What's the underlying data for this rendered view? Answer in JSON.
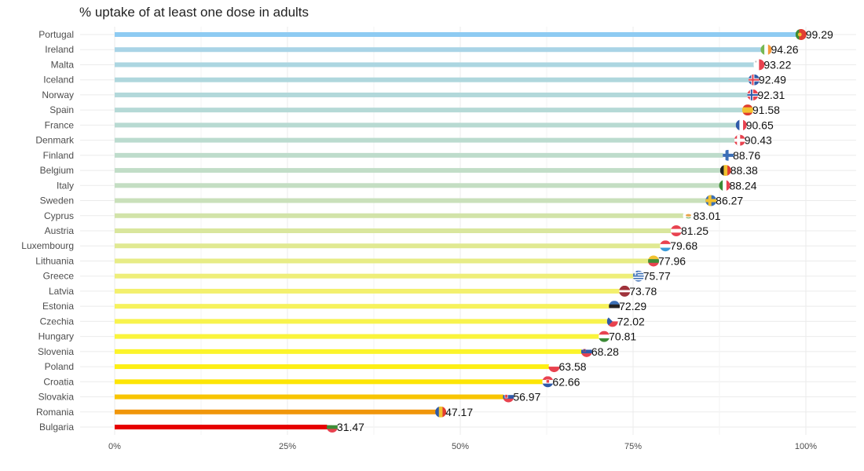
{
  "chart_data": {
    "type": "bar",
    "orientation": "horizontal",
    "title": "% uptake of at least one dose in adults",
    "xlabel": "",
    "ylabel": "",
    "xlim": [
      0,
      107
    ],
    "x_ticks": [
      0,
      25,
      50,
      75,
      100
    ],
    "x_tick_labels": [
      "0%",
      "25%",
      "50%",
      "75%",
      "100%"
    ],
    "grid": true,
    "legend": "none",
    "categories": [
      "Portugal",
      "Ireland",
      "Malta",
      "Iceland",
      "Norway",
      "Spain",
      "France",
      "Denmark",
      "Finland",
      "Belgium",
      "Italy",
      "Sweden",
      "Cyprus",
      "Austria",
      "Luxembourg",
      "Lithuania",
      "Greece",
      "Latvia",
      "Estonia",
      "Czechia",
      "Hungary",
      "Slovenia",
      "Poland",
      "Croatia",
      "Slovakia",
      "Romania",
      "Bulgaria"
    ],
    "values": [
      99.29,
      94.26,
      93.22,
      92.49,
      92.31,
      91.58,
      90.65,
      90.43,
      88.76,
      88.38,
      88.24,
      86.27,
      83.01,
      81.25,
      79.68,
      77.96,
      75.77,
      73.78,
      72.29,
      72.02,
      70.81,
      68.28,
      63.58,
      62.66,
      56.97,
      47.17,
      31.47
    ],
    "data_labels": [
      "99.29",
      "94.26",
      "93.22",
      "92.49",
      "92.31",
      "91.58",
      "90.65",
      "90.43",
      "88.76",
      "88.38",
      "88.24",
      "86.27",
      "83.01",
      "81.25",
      "79.68",
      "77.96",
      "75.77",
      "73.78",
      "72.29",
      "72.02",
      "70.81",
      "68.28",
      "63.58",
      "62.66",
      "56.97",
      "47.17",
      "31.47"
    ],
    "bar_colors": [
      "#8ecbf2",
      "#a9d4e6",
      "#acd6e1",
      "#afd7dd",
      "#b2d8da",
      "#b5d9d6",
      "#b8dad2",
      "#bbdbcf",
      "#bedccb",
      "#c1ddc7",
      "#c4dec3",
      "#c9e0ba",
      "#d2e3a9",
      "#d9e69d",
      "#e0e992",
      "#e7ec86",
      "#eeee7a",
      "#f3f06d",
      "#f6f25d",
      "#f8f34d",
      "#faf43c",
      "#fcf42a",
      "#fdef14",
      "#fde505",
      "#f8c500",
      "#f0960a",
      "#e60000"
    ],
    "marker_flags": [
      "portugal-flag-icon",
      "ireland-flag-icon",
      "malta-flag-icon",
      "iceland-flag-icon",
      "norway-flag-icon",
      "spain-flag-icon",
      "france-flag-icon",
      "denmark-flag-icon",
      "finland-flag-icon",
      "belgium-flag-icon",
      "italy-flag-icon",
      "sweden-flag-icon",
      "cyprus-flag-icon",
      "austria-flag-icon",
      "luxembourg-flag-icon",
      "lithuania-flag-icon",
      "greece-flag-icon",
      "latvia-flag-icon",
      "estonia-flag-icon",
      "czechia-flag-icon",
      "hungary-flag-icon",
      "slovenia-flag-icon",
      "poland-flag-icon",
      "croatia-flag-icon",
      "slovakia-flag-icon",
      "romania-flag-icon",
      "bulgaria-flag-icon"
    ]
  }
}
